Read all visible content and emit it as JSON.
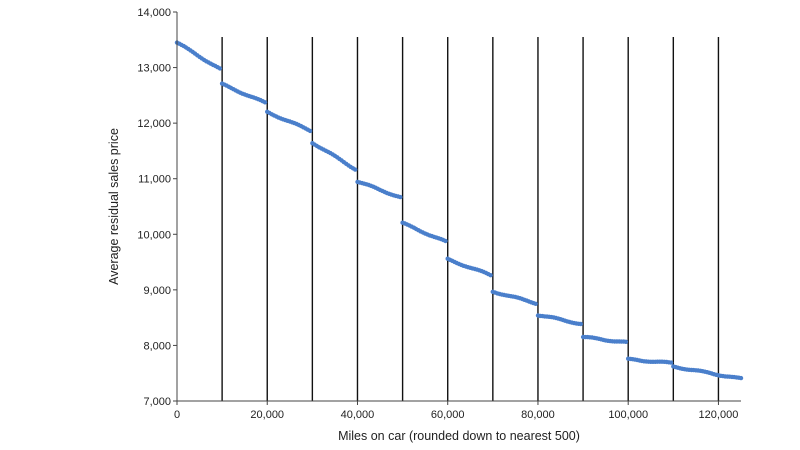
{
  "chart_data": {
    "type": "scatter",
    "title": "",
    "xlabel": "Miles on car (rounded down to nearest 500)",
    "ylabel": "Average residual sales price",
    "xlim": [
      0,
      125000
    ],
    "ylim": [
      7000,
      14000
    ],
    "x_ticks": [
      0,
      20000,
      40000,
      60000,
      80000,
      100000,
      120000
    ],
    "x_tick_labels": [
      "0",
      "20,000",
      "40,000",
      "60,000",
      "80,000",
      "100,000",
      "120,000"
    ],
    "y_ticks": [
      7000,
      8000,
      9000,
      10000,
      11000,
      12000,
      13000,
      14000
    ],
    "y_tick_labels": [
      "7,000",
      "8,000",
      "9,000",
      "10,000",
      "11,000",
      "12,000",
      "13,000",
      "14,000"
    ],
    "vertical_lines_at": [
      10000,
      20000,
      30000,
      40000,
      50000,
      60000,
      70000,
      80000,
      90000,
      100000,
      110000,
      120000
    ],
    "grid": false,
    "legend": "none",
    "marker_color": "#4a7fcb",
    "line_color": "#111111",
    "segments": [
      {
        "from": 0,
        "to": 10000,
        "start": 13450,
        "end": 12950
      },
      {
        "from": 10000,
        "to": 20000,
        "start": 12700,
        "end": 12350
      },
      {
        "from": 20000,
        "to": 30000,
        "start": 12200,
        "end": 11850
      },
      {
        "from": 30000,
        "to": 40000,
        "start": 11650,
        "end": 11150
      },
      {
        "from": 40000,
        "to": 50000,
        "start": 10950,
        "end": 10650
      },
      {
        "from": 50000,
        "to": 60000,
        "start": 10200,
        "end": 9850
      },
      {
        "from": 60000,
        "to": 70000,
        "start": 9550,
        "end": 9250
      },
      {
        "from": 70000,
        "to": 80000,
        "start": 8970,
        "end": 8750
      },
      {
        "from": 80000,
        "to": 90000,
        "start": 8550,
        "end": 8380
      },
      {
        "from": 90000,
        "to": 100000,
        "start": 8150,
        "end": 8050
      },
      {
        "from": 100000,
        "to": 110000,
        "start": 7750,
        "end": 7680
      },
      {
        "from": 110000,
        "to": 125000,
        "start": 7620,
        "end": 7400
      }
    ],
    "point_spacing": 500
  }
}
